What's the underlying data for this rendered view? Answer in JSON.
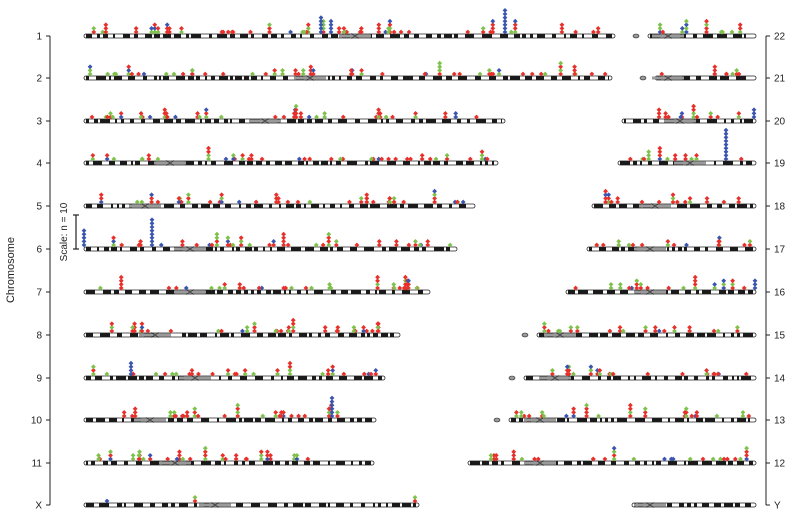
{
  "figure": {
    "axis_title": "Chromosome",
    "scale_label": "Scale: n = 10",
    "colors": {
      "band_dark": "#1a1a1a",
      "band_light": "#ffffff",
      "centromere": "#9a9a9a",
      "marker_red": "#e8302a",
      "marker_green": "#7fc24a",
      "marker_blue": "#3a55b0"
    }
  },
  "left_axis": {
    "labels": [
      "1",
      "2",
      "3",
      "4",
      "5",
      "6",
      "7",
      "8",
      "9",
      "10",
      "11",
      "X"
    ]
  },
  "right_axis": {
    "labels": [
      "22",
      "21",
      "20",
      "19",
      "18",
      "17",
      "16",
      "15",
      "14",
      "13",
      "12",
      "Y"
    ]
  }
}
